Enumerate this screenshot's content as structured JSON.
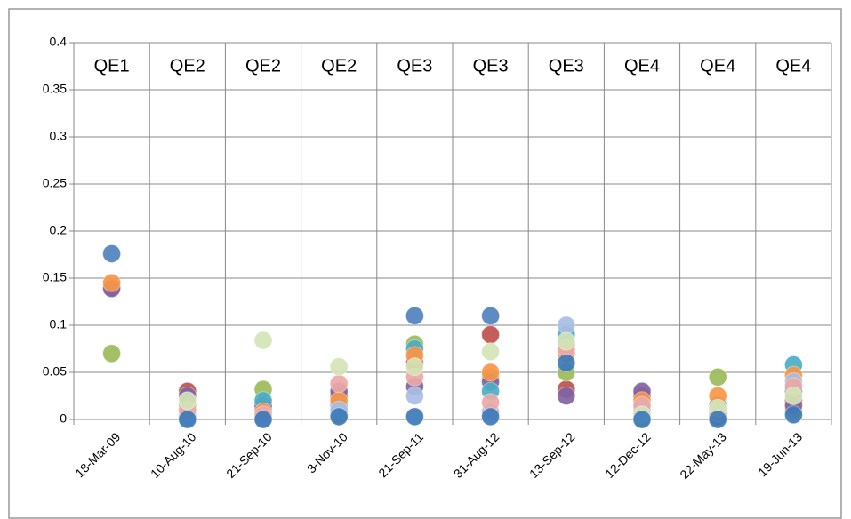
{
  "chart_data": {
    "type": "scatter",
    "categories": [
      "18-Mar-09",
      "10-Aug-10",
      "21-Sep-10",
      "3-Nov-10",
      "21-Sep-11",
      "31-Aug-12",
      "13-Sep-12",
      "12-Dec-12",
      "22-May-13",
      "19-Jun-13"
    ],
    "column_labels": [
      "QE1",
      "QE2",
      "QE2",
      "QE2",
      "QE3",
      "QE3",
      "QE3",
      "QE4",
      "QE4",
      "QE4"
    ],
    "series": [
      {
        "color": "#4f81bd",
        "values": [
          0.176,
          0.005,
          0.01,
          0.008,
          0.11,
          0.11,
          0.08,
          0.01,
          0.005,
          0.03
        ]
      },
      {
        "color": "#c0504d",
        "values": [
          0.14,
          0.03,
          0.012,
          0.025,
          0.06,
          0.09,
          0.032,
          0.025,
          0.003,
          0.02
        ]
      },
      {
        "color": "#9bbb59",
        "values": [
          0.07,
          0.015,
          0.032,
          0.005,
          0.08,
          0.045,
          0.05,
          0.002,
          0.045,
          0.01
        ]
      },
      {
        "color": "#8064a2",
        "values": [
          0.139,
          0.025,
          0.015,
          0.03,
          0.035,
          0.04,
          0.025,
          0.03,
          0.01,
          0.015
        ]
      },
      {
        "color": "#4bacc6",
        "values": [
          null,
          0.002,
          0.02,
          0.015,
          0.075,
          0.03,
          0.09,
          0.008,
          0.015,
          0.058
        ]
      },
      {
        "color": "#f79646",
        "values": [
          0.145,
          0.008,
          0.008,
          0.02,
          0.068,
          0.05,
          0.07,
          0.02,
          0.025,
          0.047
        ]
      },
      {
        "color": "#a9bde3",
        "values": [
          null,
          0.003,
          0.002,
          0.01,
          0.025,
          0.008,
          0.1,
          0.012,
          0.008,
          0.04
        ]
      },
      {
        "color": "#eba8a6",
        "values": [
          null,
          0.01,
          0.005,
          0.038,
          0.045,
          0.018,
          0.075,
          0.015,
          0.006,
          0.035
        ]
      },
      {
        "color": "#d4e4b5",
        "values": [
          null,
          0.02,
          0.084,
          0.056,
          0.056,
          0.072,
          0.083,
          0.005,
          0.012,
          0.025
        ]
      },
      {
        "color": "#3d7ab8",
        "values": [
          null,
          0,
          0,
          0.003,
          0.003,
          0.003,
          0.06,
          0,
          0,
          0.005
        ]
      }
    ],
    "ylim": [
      0,
      0.4
    ],
    "yticks": [
      0,
      0.05,
      0.1,
      0.15,
      0.2,
      0.25,
      0.3,
      0.35,
      0.4
    ],
    "grid": true
  }
}
